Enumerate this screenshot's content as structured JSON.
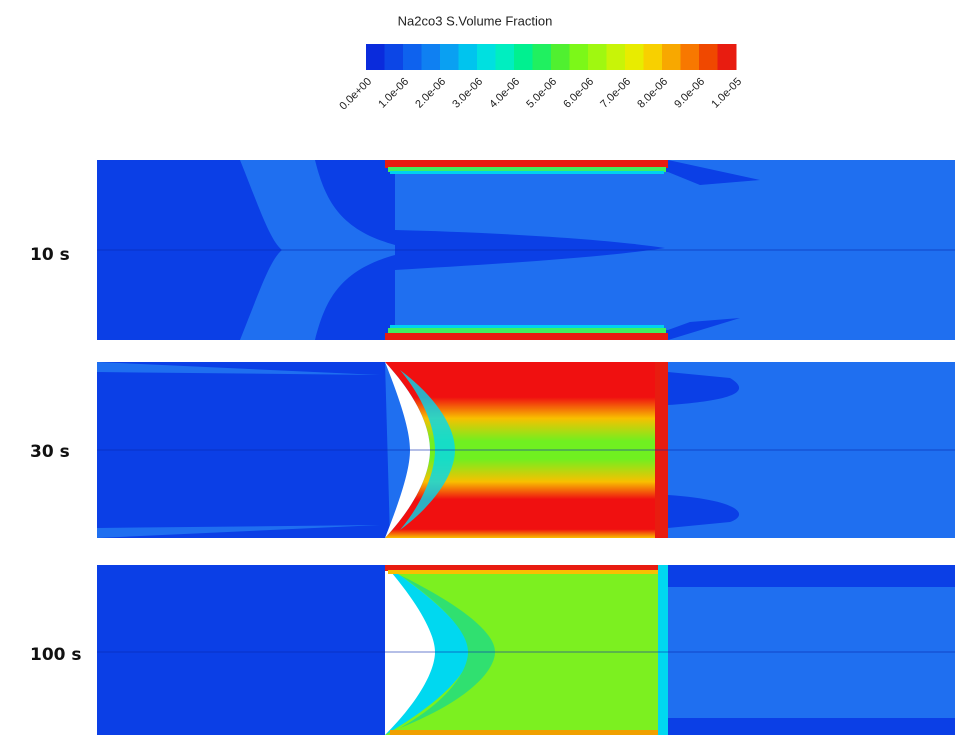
{
  "colorbar": {
    "title": "Na2co3 S.Volume Fraction",
    "ticks": [
      "0.0e+00",
      "1.0e-06",
      "2.0e-06",
      "3.0e-06",
      "4.0e-06",
      "5.0e-06",
      "6.0e-06",
      "7.0e-06",
      "8.0e-06",
      "9.0e-06",
      "1.0e-05"
    ],
    "colors": [
      "#0a2bdc",
      "#0c46e6",
      "#0e62ee",
      "#0f80f2",
      "#0aa0f2",
      "#00c4ee",
      "#00e0e0",
      "#00eec0",
      "#00f090",
      "#20f060",
      "#50f030",
      "#7cf818",
      "#a0f810",
      "#c8f408",
      "#e8ec00",
      "#f8d000",
      "#f8a800",
      "#f87800",
      "#f04800",
      "#e81c10"
    ]
  },
  "panels": [
    {
      "label": "10 s"
    },
    {
      "label": "30 s"
    },
    {
      "label": "100 s"
    }
  ]
}
